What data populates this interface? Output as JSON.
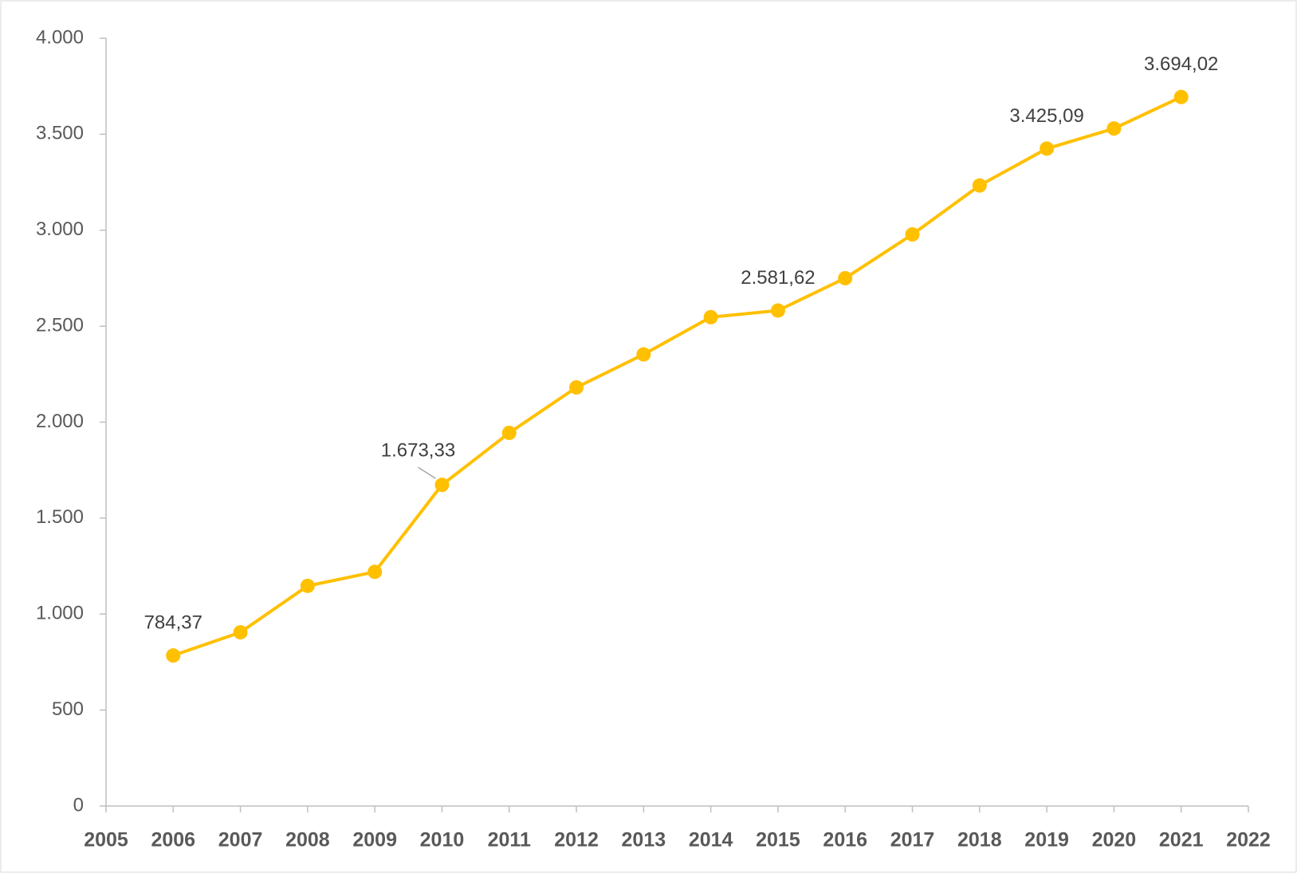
{
  "chart_data": {
    "type": "line",
    "x": [
      2006,
      2007,
      2008,
      2009,
      2010,
      2011,
      2012,
      2013,
      2014,
      2015,
      2016,
      2017,
      2018,
      2019,
      2020,
      2021
    ],
    "values": [
      784.37,
      905,
      1147,
      1220,
      1673.33,
      1944,
      2181,
      2353,
      2547,
      2581.62,
      2750,
      2978,
      3233,
      3425.09,
      3530,
      3694.02
    ],
    "value_labels": [
      "784,37",
      null,
      null,
      null,
      "1.673,33",
      null,
      null,
      null,
      null,
      "2.581,62",
      null,
      null,
      null,
      "3.425,09",
      null,
      "3.694,02"
    ],
    "color": "#ffc000",
    "xlim": [
      2005,
      2022
    ],
    "xticks": [
      2005,
      2006,
      2007,
      2008,
      2009,
      2010,
      2011,
      2012,
      2013,
      2014,
      2015,
      2016,
      2017,
      2018,
      2019,
      2020,
      2021,
      2022
    ],
    "ylim": [
      0,
      4000
    ],
    "yticks": [
      0,
      {
        "value": 500,
        "label": "500"
      },
      {
        "value": 1000,
        "label": "1.000"
      },
      {
        "value": 1500,
        "label": "1.500"
      },
      {
        "value": 2000,
        "label": "2.000"
      },
      {
        "value": 2500,
        "label": "2.500"
      },
      {
        "value": 3000,
        "label": "3.000"
      },
      {
        "value": 3500,
        "label": "3.500"
      },
      {
        "value": 4000,
        "label": "4.000"
      }
    ],
    "grid": false
  }
}
